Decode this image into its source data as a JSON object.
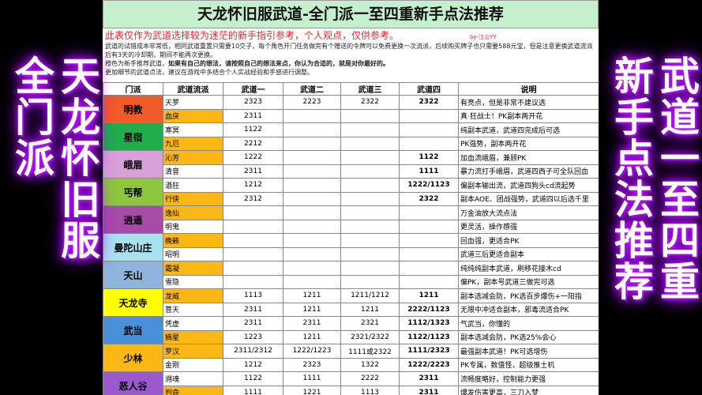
{
  "title": "天龙怀旧服武道-全门派一至四重新手点法推荐",
  "notes": {
    "disclaimer": "此表仅作为武道选择较为迷茫的新手指引参考，个人观点，仅供参考。",
    "author": "by-江山YY",
    "line1": "武道的试错成本非常低，相同武道重置只需要10交子，每个角色开门任务做完有个赠送的令牌可以免费更换一次流派，后续购买牌子也只需要588元宝，但是注意更换武道流派后有3天的冷却期，期间不能再次更换。",
    "line2a": "橙色为新手推荐武道，",
    "line2b": "如果有自己的想法，请按照自己的想法来点，你认为合适的，就是对你最好的。",
    "line3": "更加细节的武道点法，建议在游戏中多结合个人实战经验和手感进行调整。"
  },
  "headers": [
    "门派",
    "武道流派",
    "武道一",
    "武道二",
    "武道三",
    "武道四",
    "说明"
  ],
  "sects": [
    {
      "name": "明教",
      "color": "#f15a29",
      "rows": [
        {
          "style": "天罗",
          "hl": false,
          "w": [
            "2323",
            "2223",
            "2322",
            "2322"
          ],
          "desc": "有亮点，但是非常不建议选"
        },
        {
          "style": "血戾",
          "hl": true,
          "w": [
            "2311",
            "",
            "",
            ""
          ],
          "desc": "真·狂战士！PK副本两开花"
        }
      ]
    },
    {
      "name": "星宿",
      "color": "#1fae4b",
      "rows": [
        {
          "style": "寒冥",
          "hl": false,
          "w": [
            "1122",
            "",
            "",
            ""
          ],
          "desc": "纯副本武道，武道四完成后可选"
        },
        {
          "style": "九厄",
          "hl": true,
          "w": [
            "2212",
            "",
            "",
            ""
          ],
          "desc": "PK强势，副本两开花"
        }
      ]
    },
    {
      "name": "峨眉",
      "color": "#d8a0d8",
      "rows": [
        {
          "style": "沁芳",
          "hl": true,
          "w": [
            "1222",
            "",
            "",
            "1122"
          ],
          "desc": "加血流峨眉，兼顾PK"
        },
        {
          "style": "清音",
          "hl": false,
          "w": [
            "2311",
            "",
            "",
            "1111"
          ],
          "desc": "暴力流打手峨眉，武道四西子可全队回血"
        }
      ]
    },
    {
      "name": "丐帮",
      "color": "#8dc63f",
      "rows": [
        {
          "style": "酒狂",
          "hl": false,
          "w": [
            "1212",
            "",
            "",
            "1222/1123"
          ],
          "desc": "偏副本输出流，武道四狗头cd流起势"
        },
        {
          "style": "行侠",
          "hl": true,
          "w": [
            "2312",
            "",
            "",
            "2322"
          ],
          "desc": "副本AOE、团战强势，武道四以后选千里"
        }
      ]
    },
    {
      "name": "逍遥",
      "color": "#a64ca6",
      "rows": [
        {
          "style": "逸仙",
          "hl": true,
          "w": [
            "",
            "",
            "",
            ""
          ],
          "desc": "万金油放大流点法"
        },
        {
          "style": "明鬼",
          "hl": false,
          "w": [
            "",
            "",
            "",
            ""
          ],
          "desc": "更灵活，操作感强"
        }
      ]
    },
    {
      "name": "曼陀山庄",
      "color": "#a8e2f0",
      "rows": [
        {
          "style": "晚籁",
          "hl": true,
          "w": [
            "",
            "",
            "",
            ""
          ],
          "desc": "回血强，更适合PK"
        },
        {
          "style": "昭明",
          "hl": false,
          "w": [
            "",
            "",
            "",
            ""
          ],
          "desc": "武道三后更适合副本"
        }
      ]
    },
    {
      "name": "天山",
      "color": "#8fb4de",
      "rows": [
        {
          "style": "霜凝",
          "hl": true,
          "w": [
            "",
            "",
            "",
            ""
          ],
          "desc": "纯纯纯副本武道，刷移花接木cd"
        },
        {
          "style": "雪隐",
          "hl": false,
          "w": [
            "",
            "",
            "",
            ""
          ],
          "desc": "偏PK，副本号武道三做完可选"
        }
      ]
    },
    {
      "name": "天龙寺",
      "color": "#ffff00",
      "rows": [
        {
          "style": "龙威",
          "hl": true,
          "w": [
            "1113",
            "1211",
            "1211/1212",
            "1211"
          ],
          "desc": "副本选减会防，PK选百步爆伤+一阳指"
        },
        {
          "style": "菩天",
          "hl": false,
          "w": [
            "2311",
            "1211",
            "1211",
            "2222/1123"
          ],
          "desc": "无限中冲适合副本，邪毒流适合PK"
        }
      ]
    },
    {
      "name": "武当",
      "color": "#4a90d9",
      "rows": [
        {
          "style": "凭虚",
          "hl": false,
          "w": [
            "2311",
            "2311",
            "2321",
            "1112/1323"
          ],
          "desc": "气武当，你懂的"
        },
        {
          "style": "摘星",
          "hl": true,
          "w": [
            "1223",
            "1211",
            "2321/2322",
            "1122/1123"
          ],
          "desc": "副本选减会防，PK选25%会心"
        }
      ]
    },
    {
      "name": "少林",
      "color": "#fbb714",
      "rows": [
        {
          "style": "罗汉",
          "hl": true,
          "w": [
            "2311/2312",
            "1222/1223",
            "1111或2322",
            "1111/2323"
          ],
          "desc": "最强副本武道！PK可选增伤"
        },
        {
          "style": "金刚",
          "hl": false,
          "w": [
            "1212",
            "2323",
            "1322",
            "1222/2223"
          ],
          "desc": "PK专属，数值怪，超级推土机"
        }
      ]
    },
    {
      "name": "恶人谷",
      "color": "#9b59d0",
      "rows": [
        {
          "style": "溯魂",
          "hl": false,
          "w": [
            "1122",
            "1111",
            "2222",
            "2311"
          ],
          "desc": "流畅度略好，控制能力更强"
        },
        {
          "style": "判命",
          "hl": true,
          "w": [
            "1111",
            "1221",
            "1113",
            "2311"
          ],
          "desc": "爆发伤害更高，三刀入梦"
        }
      ]
    }
  ],
  "overlay": [
    "天龙怀旧服",
    "全门派",
    "武道一至四重",
    "新手点法推荐"
  ],
  "colors": {
    "highlight": "#fbb714",
    "title_bg": "#c6efce",
    "overlay_glow": "#b000ff"
  }
}
